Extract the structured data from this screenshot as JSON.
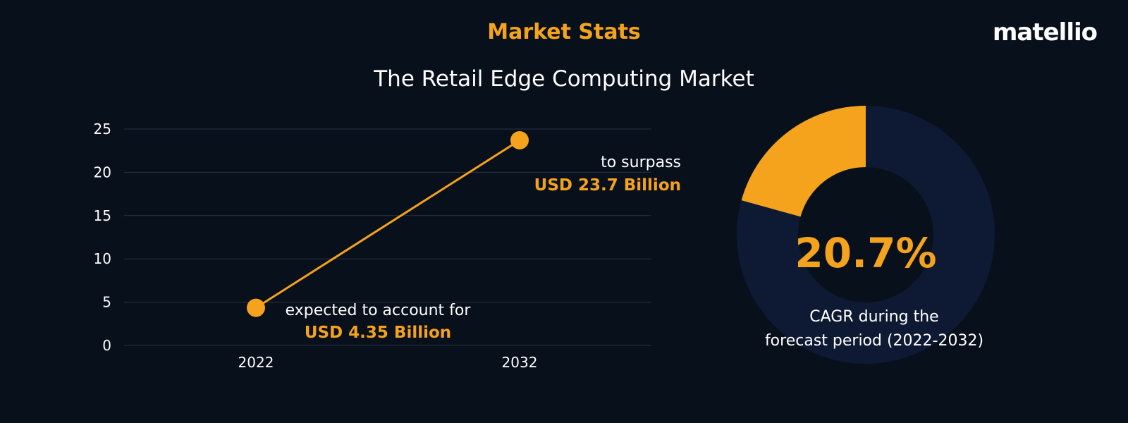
{
  "header": {
    "title": "Market Stats",
    "subtitle": "The Retail Edge Computing Market",
    "logo_text": "matellio"
  },
  "colors": {
    "background": "#08101c",
    "accent": "#f5a21c",
    "grid": "#2a3240",
    "donut_track": "#0e1a33"
  },
  "chart_data": [
    {
      "type": "line",
      "x": [
        "2022",
        "2032"
      ],
      "series": [
        {
          "values": [
            4.35,
            23.7
          ]
        }
      ],
      "ylim": [
        0,
        25
      ],
      "yticks": [
        0,
        5,
        10,
        15,
        20,
        25
      ],
      "grid": true,
      "annotations": [
        {
          "x": "2022",
          "lines": [
            "expected to account for",
            "USD 4.35 Billion"
          ]
        },
        {
          "x": "2032",
          "lines": [
            "to surpass",
            "USD 23.7 Billion"
          ]
        }
      ]
    },
    {
      "type": "pie",
      "style": "donut",
      "highlight_fraction": 0.207,
      "value_label": "20.7%",
      "caption": [
        "CAGR during the",
        "forecast period (2022-2032)"
      ]
    }
  ]
}
